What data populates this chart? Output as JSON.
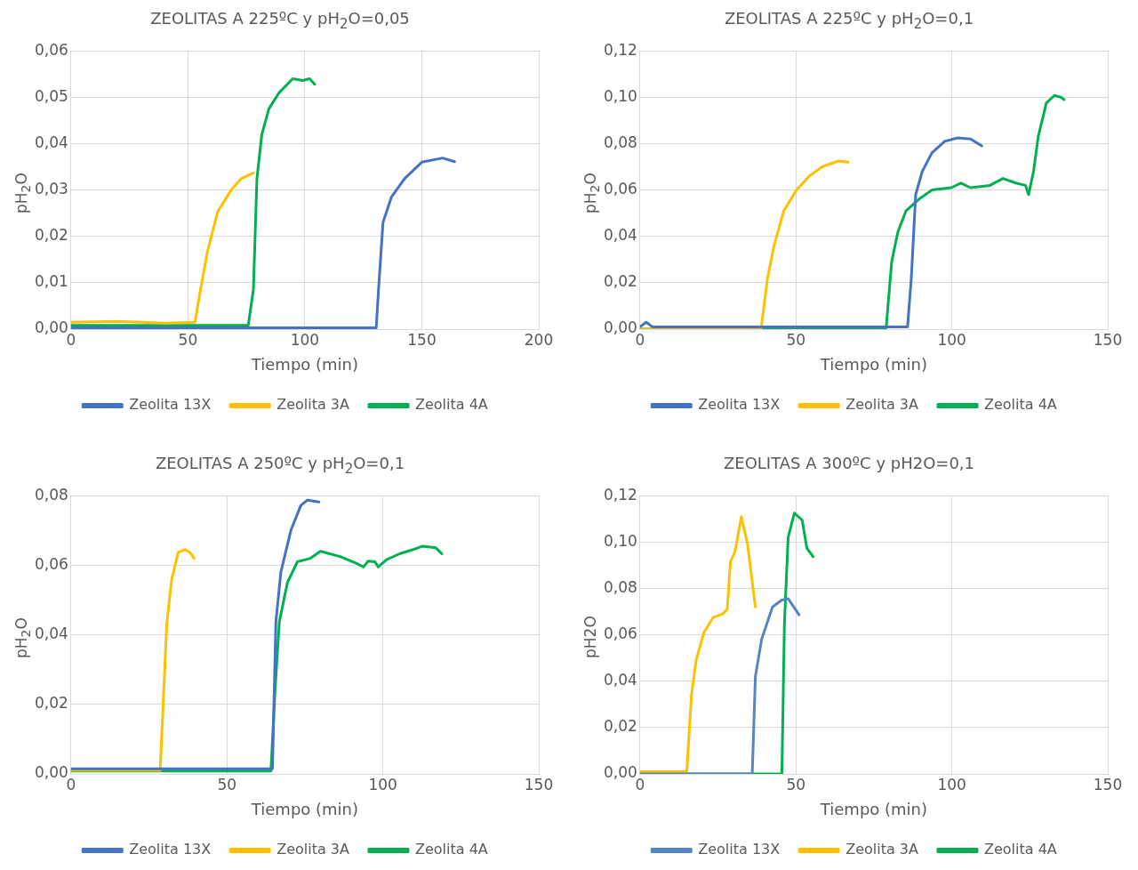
{
  "chart_data": [
    {
      "type": "line",
      "title": "ZEOLITAS  A 225ºC y pH$_{2}$O=0,05",
      "xlabel": "Tiempo (min)",
      "ylabel": "pH$_{2}$O",
      "xlim": [
        0,
        200
      ],
      "xticks": [
        0,
        50,
        100,
        150,
        200
      ],
      "ylim": [
        0,
        0.06
      ],
      "yticks": [
        {
          "value": 0,
          "label": "0,00"
        },
        {
          "value": 0.01,
          "label": "0,01"
        },
        {
          "value": 0.02,
          "label": "0,02"
        },
        {
          "value": 0.03,
          "label": "0,03"
        },
        {
          "value": 0.04,
          "label": "0,04"
        },
        {
          "value": 0.05,
          "label": "0,05"
        },
        {
          "value": 0.06,
          "label": "0,06"
        }
      ],
      "grid": true,
      "legend": "bottom",
      "marker": "none",
      "line_style": "solid",
      "series": [
        {
          "name": "Zeolita 13X",
          "color": "#4472c4",
          "x": [
            0,
            40,
            76,
            100,
            130.5,
            131.5,
            133.4,
            137,
            142.7,
            150,
            158.9,
            164
          ],
          "values": [
            0.0003,
            0.0003,
            0.0003,
            0.0003,
            0.0003,
            0.0086,
            0.023,
            0.0285,
            0.0325,
            0.036,
            0.0369,
            0.0361
          ]
        },
        {
          "name": "Zeolita 3A",
          "color": "#ffc000",
          "x": [
            0,
            20,
            40,
            53,
            55.4,
            58.3,
            62.7,
            68.5,
            72.9,
            78
          ],
          "values": [
            0.0015,
            0.0017,
            0.0013,
            0.0015,
            0.0086,
            0.0166,
            0.0253,
            0.03,
            0.0325,
            0.0337
          ]
        },
        {
          "name": "Zeolita 4A",
          "color": "#00b050",
          "x": [
            0,
            40,
            75.8,
            78,
            79.5,
            81.6,
            84.6,
            89,
            94.8,
            99.1,
            102,
            104.2
          ],
          "values": [
            0.0008,
            0.0008,
            0.0008,
            0.0086,
            0.0325,
            0.042,
            0.0475,
            0.051,
            0.054,
            0.0536,
            0.054,
            0.0528
          ]
        }
      ]
    },
    {
      "type": "line",
      "title": "ZEOLITAS  A 225ºC y pH$_{2}$O=0,1",
      "xlabel": "Tiempo (min)",
      "ylabel": "pH$_{2}$O",
      "xlim": [
        0,
        150
      ],
      "xticks": [
        0,
        50,
        100,
        150
      ],
      "ylim": [
        0,
        0.12
      ],
      "yticks": [
        {
          "value": 0,
          "label": "0,00"
        },
        {
          "value": 0.02,
          "label": "0,02"
        },
        {
          "value": 0.04,
          "label": "0,04"
        },
        {
          "value": 0.06,
          "label": "0,06"
        },
        {
          "value": 0.08,
          "label": "0,08"
        },
        {
          "value": 0.1,
          "label": "0,10"
        },
        {
          "value": 0.12,
          "label": "0,12"
        }
      ],
      "grid": true,
      "legend": "bottom",
      "marker": "none",
      "line_style": "solid",
      "series": [
        {
          "name": "Zeolita 13X",
          "color": "#4472c4",
          "x": [
            0,
            2,
            4,
            40,
            85.8,
            87,
            88.4,
            90.5,
            93.6,
            97.7,
            101.9,
            106,
            109.6
          ],
          "values": [
            0.001,
            0.003,
            0.001,
            0.001,
            0.001,
            0.022,
            0.058,
            0.068,
            0.076,
            0.081,
            0.0825,
            0.082,
            0.079
          ]
        },
        {
          "name": "Zeolita 3A",
          "color": "#ffc000",
          "x": [
            0,
            38.8,
            40.9,
            43,
            46.1,
            50.2,
            54.3,
            58.4,
            63.6,
            66.7
          ],
          "values": [
            0,
            0,
            0.022,
            0.036,
            0.051,
            0.06,
            0.066,
            0.07,
            0.0725,
            0.072
          ]
        },
        {
          "name": "Zeolita 4A",
          "color": "#00b050",
          "x": [
            0,
            78.9,
            80.7,
            82.7,
            85.3,
            89.4,
            93.6,
            99.8,
            102.9,
            106,
            112.2,
            116.4,
            120.5,
            123.6,
            124.6,
            126.2,
            127.7,
            130.3,
            132.9,
            135,
            136
          ],
          "values": [
            0,
            0,
            0.029,
            0.042,
            0.051,
            0.056,
            0.06,
            0.061,
            0.063,
            0.061,
            0.062,
            0.065,
            0.063,
            0.062,
            0.058,
            0.068,
            0.083,
            0.0975,
            0.1008,
            0.1,
            0.099
          ]
        }
      ]
    },
    {
      "type": "line",
      "title": "ZEOLITAS  A 250ºC y pH$_{2}$O=0,1",
      "xlabel": "Tiempo (min)",
      "ylabel": "pH$_{2}$O",
      "xlim": [
        0,
        150
      ],
      "xticks": [
        0,
        50,
        100,
        150
      ],
      "ylim": [
        0,
        0.08
      ],
      "yticks": [
        {
          "value": 0,
          "label": "0,00"
        },
        {
          "value": 0.02,
          "label": "0,02"
        },
        {
          "value": 0.04,
          "label": "0,04"
        },
        {
          "value": 0.06,
          "label": "0,06"
        },
        {
          "value": 0.08,
          "label": "0,08"
        }
      ],
      "grid": true,
      "legend": "bottom",
      "marker": "none",
      "line_style": "solid",
      "series": [
        {
          "name": "Zeolita 13X",
          "color": "#4472c4",
          "x": [
            0,
            30,
            64.6,
            65.7,
            67.3,
            70.5,
            73.7,
            75.8,
            79.5
          ],
          "values": [
            0.0015,
            0.0015,
            0.0015,
            0.0437,
            0.058,
            0.07,
            0.0772,
            0.0787,
            0.0782
          ]
        },
        {
          "name": "Zeolita 3A",
          "color": "#ffc000",
          "x": [
            0,
            28.6,
            29.7,
            30.7,
            32.3,
            34.4,
            36.6,
            38.1,
            39.5
          ],
          "values": [
            0.001,
            0.001,
            0.023,
            0.043,
            0.056,
            0.0637,
            0.0645,
            0.0637,
            0.062
          ]
        },
        {
          "name": "Zeolita 4A",
          "color": "#00b050",
          "x": [
            0,
            35,
            64.1,
            65.4,
            66.8,
            69.4,
            72.6,
            76.8,
            80,
            86.3,
            91.6,
            93.8,
            95.3,
            97.5,
            98.5,
            101.2,
            105.4,
            109.7,
            112.8,
            117,
            118.9
          ],
          "values": [
            0.0008,
            0.0008,
            0.0008,
            0.0234,
            0.0437,
            0.055,
            0.061,
            0.062,
            0.064,
            0.0625,
            0.0605,
            0.0595,
            0.0612,
            0.061,
            0.0595,
            0.0616,
            0.0633,
            0.0645,
            0.0655,
            0.065,
            0.0633
          ]
        }
      ]
    },
    {
      "type": "line",
      "title": "ZEOLITAS A 300ºC y pH2O=0,1",
      "xlabel": "Tiempo (min)",
      "ylabel": "pH2O",
      "xlim": [
        0,
        150
      ],
      "xticks": [
        0,
        50,
        100,
        150
      ],
      "ylim": [
        0,
        0.12
      ],
      "yticks": [
        {
          "value": 0,
          "label": "0,00"
        },
        {
          "value": 0.02,
          "label": "0,02"
        },
        {
          "value": 0.04,
          "label": "0,04"
        },
        {
          "value": 0.06,
          "label": "0,06"
        },
        {
          "value": 0.08,
          "label": "0,08"
        },
        {
          "value": 0.1,
          "label": "0,10"
        },
        {
          "value": 0.12,
          "label": "0,12"
        }
      ],
      "grid": true,
      "legend": "bottom",
      "marker": "none",
      "line_style": "solid",
      "series": [
        {
          "name": "Zeolita 13X",
          "color": "#5585c4",
          "x": [
            0,
            20,
            36,
            37,
            39,
            42.5,
            45.5,
            47.5,
            51
          ],
          "values": [
            0,
            0,
            0,
            0.042,
            0.058,
            0.072,
            0.075,
            0.0756,
            0.0686
          ]
        },
        {
          "name": "Zeolita 3A",
          "color": "#ffc000",
          "x": [
            0,
            15,
            16.5,
            18,
            20.5,
            23.5,
            26.5,
            28,
            29,
            30.5,
            32.5,
            34.5,
            37
          ],
          "values": [
            0.001,
            0.001,
            0.034,
            0.049,
            0.061,
            0.0675,
            0.069,
            0.071,
            0.0915,
            0.096,
            0.111,
            0.099,
            0.072
          ]
        },
        {
          "name": "Zeolita 4A",
          "color": "#00b050",
          "x": [
            0,
            20,
            45.5,
            46.3,
            47.5,
            49.5,
            52,
            53.5,
            55.5
          ],
          "values": [
            0,
            0,
            0,
            0.064,
            0.102,
            0.1125,
            0.1095,
            0.0974,
            0.0937
          ]
        }
      ]
    }
  ]
}
